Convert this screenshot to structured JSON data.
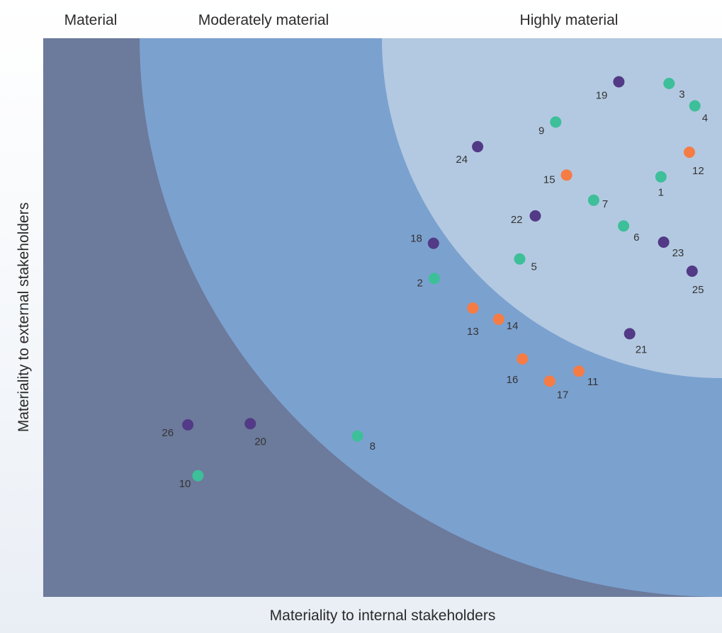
{
  "chart_data": {
    "type": "scatter",
    "xlabel": "Materiality to internal stakeholders",
    "ylabel": "Materiality to external stakeholders",
    "xlim": [
      0,
      100
    ],
    "ylim": [
      0,
      100
    ],
    "grid": false,
    "zones": [
      {
        "name": "Material",
        "color": "#6c7a9b"
      },
      {
        "name": "Moderately material",
        "color": "#7ba1cf"
      },
      {
        "name": "Highly material",
        "color": "#b3c9e1"
      }
    ],
    "series": [
      {
        "color": "#3dbf99",
        "points": [
          {
            "label": "1",
            "x": 91.0,
            "y": 75.2
          },
          {
            "label": "2",
            "x": 57.6,
            "y": 57.0
          },
          {
            "label": "3",
            "x": 92.2,
            "y": 91.9
          },
          {
            "label": "4",
            "x": 96.0,
            "y": 87.9
          },
          {
            "label": "5",
            "x": 70.2,
            "y": 60.5
          },
          {
            "label": "6",
            "x": 85.5,
            "y": 66.4
          },
          {
            "label": "7",
            "x": 81.1,
            "y": 71.0
          },
          {
            "label": "8",
            "x": 46.3,
            "y": 28.8
          },
          {
            "label": "9",
            "x": 75.5,
            "y": 85.0
          },
          {
            "label": "10",
            "x": 22.8,
            "y": 21.7
          }
        ]
      },
      {
        "color": "#f57c45",
        "points": [
          {
            "label": "11",
            "x": 78.9,
            "y": 40.4
          },
          {
            "label": "12",
            "x": 95.2,
            "y": 79.6
          },
          {
            "label": "13",
            "x": 63.3,
            "y": 51.7
          },
          {
            "label": "14",
            "x": 67.1,
            "y": 49.7
          },
          {
            "label": "15",
            "x": 77.1,
            "y": 75.5
          },
          {
            "label": "16",
            "x": 70.6,
            "y": 42.6
          },
          {
            "label": "17",
            "x": 74.6,
            "y": 38.6
          }
        ]
      },
      {
        "color": "#523a86",
        "points": [
          {
            "label": "18",
            "x": 57.5,
            "y": 63.3
          },
          {
            "label": "19",
            "x": 84.8,
            "y": 92.2
          },
          {
            "label": "20",
            "x": 30.5,
            "y": 31.0
          },
          {
            "label": "21",
            "x": 86.4,
            "y": 47.1
          },
          {
            "label": "22",
            "x": 72.5,
            "y": 68.2
          },
          {
            "label": "23",
            "x": 91.4,
            "y": 63.5
          },
          {
            "label": "24",
            "x": 64.0,
            "y": 80.6
          },
          {
            "label": "25",
            "x": 95.6,
            "y": 58.3
          },
          {
            "label": "26",
            "x": 21.3,
            "y": 30.8
          }
        ]
      }
    ]
  }
}
